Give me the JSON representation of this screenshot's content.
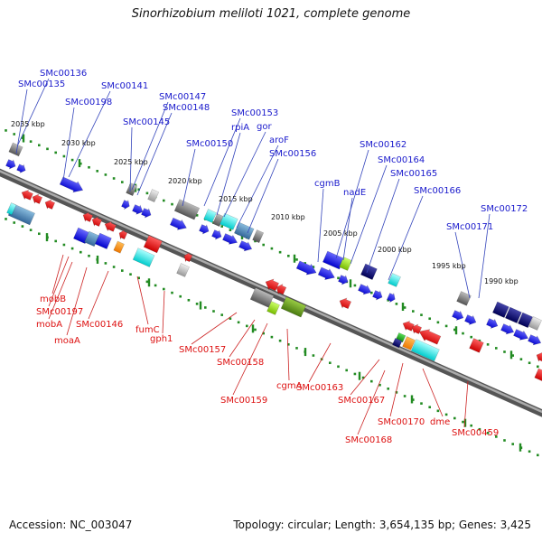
{
  "title": "Sinorhizobium meliloti 1021, complete genome",
  "footer": {
    "accession": "Accession: NC_003047",
    "summary": "Topology: circular; Length: 3,654,135 bp; Genes: 3,425"
  },
  "colors": {
    "forward_gene_label": "#1a1acc",
    "reverse_gene_label": "#dd1111",
    "backbone": "#777777",
    "tick": "#228b22",
    "leader_blue": "#3344bb",
    "leader_red": "#cc2222"
  },
  "scale_labels": [
    "2035 kbp",
    "2030 kbp",
    "2025 kbp",
    "2020 kbp",
    "2015 kbp",
    "2010 kbp",
    "2005 kbp",
    "2000 kbp",
    "1995 kbp",
    "1990 kbp"
  ],
  "forward_genes": [
    "SMc00136",
    "SMc00135",
    "SMc00141",
    "SMc00198",
    "SMc00147",
    "SMc00148",
    "SMc00145",
    "SMc00153",
    "rpiA",
    "gor",
    "SMc00150",
    "aroF",
    "SMc00156",
    "SMc00162",
    "cgmB",
    "SMc00164",
    "nadE",
    "SMc00165",
    "SMc00166",
    "SMc00172",
    "SMc00171"
  ],
  "reverse_genes": [
    "mobB",
    "SMc00197",
    "mobA",
    "moaA",
    "SMc00146",
    "fumC",
    "gph1",
    "SMc00157",
    "SMc00158",
    "cgmA",
    "SMc00159",
    "SMc00163",
    "SMc00167",
    "SMc00170",
    "dme",
    "SMc00168",
    "SMc00459"
  ]
}
